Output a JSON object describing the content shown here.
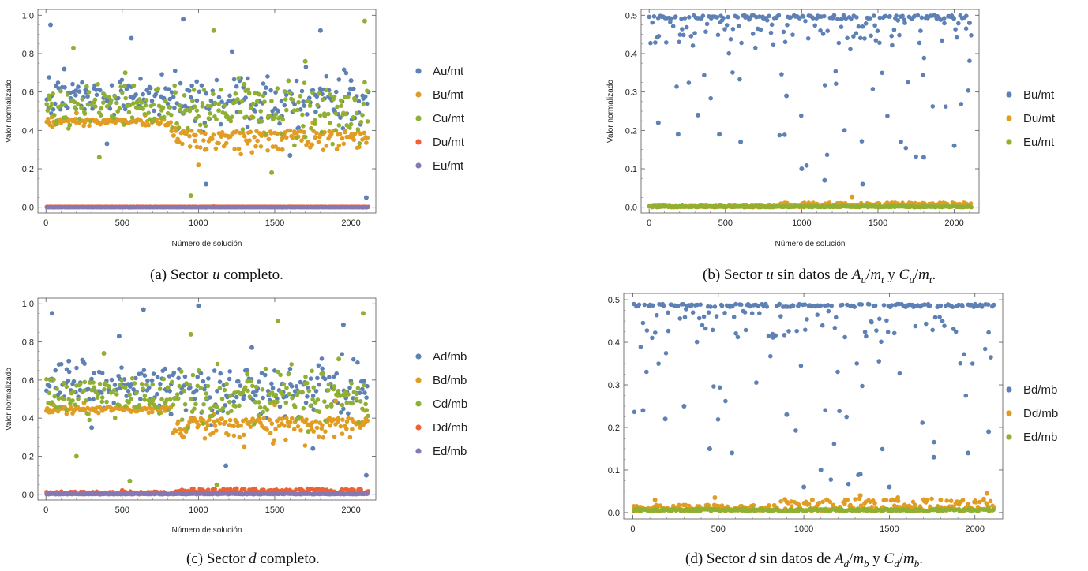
{
  "colors": {
    "blue": "#5e81b5",
    "orange": "#e19c24",
    "green": "#8fb032",
    "red": "#eb6235",
    "purple": "#8778b3"
  },
  "captions": [
    {
      "pre": "(a) Sector ",
      "it1": "u",
      "post": " completo.",
      "mid": "",
      "it2": "",
      "sub2": "",
      "it3": "",
      "end": "",
      "it4": "",
      "sub4": "",
      "it5": "",
      "end2": ""
    },
    {
      "pre": "(b) Sector ",
      "it1": "u",
      "post": " sin datos de ",
      "it2": "A",
      "sub2": "u",
      "it3": "m",
      "sub3": "t",
      "mid": " y ",
      "it4": "C",
      "sub4": "u",
      "it5": "m",
      "sub5": "t",
      "end2": "."
    },
    {
      "pre": "(c) Sector ",
      "it1": "d",
      "post": " completo.",
      "mid": "",
      "it2": "",
      "sub2": "",
      "it3": "",
      "end": "",
      "it4": "",
      "sub4": "",
      "it5": "",
      "end2": ""
    },
    {
      "pre": "(d) Sector ",
      "it1": "d",
      "post": " sin datos de ",
      "it2": "A",
      "sub2": "d",
      "it3": "m",
      "sub3": "b",
      "mid": " y ",
      "it4": "C",
      "sub4": "d",
      "it5": "m",
      "sub5": "b",
      "end2": "."
    }
  ],
  "chart_data": [
    {
      "type": "scatter",
      "xlabel": "Número de solución",
      "ylabel": "Valor normalizado",
      "xlim": [
        0,
        2110
      ],
      "ylim": [
        0,
        1.0
      ],
      "xticks": [
        0,
        500,
        1000,
        1500,
        2000
      ],
      "yticks": [
        0.0,
        0.2,
        0.4,
        0.6,
        0.8,
        1.0
      ],
      "ytick_labels": [
        "0.0",
        "0.2",
        "0.4",
        "0.6",
        "0.8",
        "1.0"
      ],
      "legend_position": "right",
      "n_points": 2110,
      "series": [
        {
          "name": "Au/mt",
          "color": "blue",
          "points": [
            [
              30,
              0.95
            ],
            [
              120,
              0.72
            ],
            [
              260,
              0.61
            ],
            [
              400,
              0.33
            ],
            [
              560,
              0.88
            ],
            [
              700,
              0.45
            ],
            [
              900,
              0.98
            ],
            [
              1050,
              0.12
            ],
            [
              1220,
              0.81
            ],
            [
              1400,
              0.55
            ],
            [
              1600,
              0.27
            ],
            [
              1800,
              0.92
            ],
            [
              2000,
              0.66
            ],
            [
              2100,
              0.05
            ]
          ]
        },
        {
          "name": "Bu/mt",
          "color": "orange",
          "points": [
            [
              40,
              0.47
            ],
            [
              200,
              0.49
            ],
            [
              420,
              0.45
            ],
            [
              650,
              0.48
            ],
            [
              850,
              0.41
            ],
            [
              1000,
              0.22
            ],
            [
              1150,
              0.38
            ],
            [
              1350,
              0.47
            ],
            [
              1550,
              0.3
            ],
            [
              1750,
              0.44
            ],
            [
              1950,
              0.49
            ],
            [
              2100,
              0.36
            ]
          ]
        },
        {
          "name": "Cu/mt",
          "color": "green",
          "points": [
            [
              20,
              0.58
            ],
            [
              180,
              0.83
            ],
            [
              350,
              0.26
            ],
            [
              520,
              0.7
            ],
            [
              760,
              0.52
            ],
            [
              950,
              0.06
            ],
            [
              1100,
              0.92
            ],
            [
              1300,
              0.64
            ],
            [
              1480,
              0.18
            ],
            [
              1700,
              0.76
            ],
            [
              1900,
              0.4
            ],
            [
              2090,
              0.97
            ]
          ]
        },
        {
          "name": "Du/mt",
          "color": "red",
          "points": [
            [
              100,
              0.001
            ],
            [
              600,
              0.002
            ],
            [
              1100,
              0.003
            ],
            [
              1600,
              0.002
            ],
            [
              2050,
              0.001
            ]
          ]
        },
        {
          "name": "Eu/mt",
          "color": "purple",
          "points": [
            [
              50,
              0.0
            ],
            [
              550,
              0.0
            ],
            [
              1050,
              0.0
            ],
            [
              1550,
              0.0
            ],
            [
              2080,
              0.0
            ]
          ]
        }
      ]
    },
    {
      "type": "scatter",
      "xlabel": "Número de solución",
      "ylabel": "Valor normalizado",
      "xlim": [
        0,
        2110
      ],
      "ylim": [
        0,
        0.5
      ],
      "xticks": [
        0,
        500,
        1000,
        1500,
        2000
      ],
      "yticks": [
        0.0,
        0.1,
        0.2,
        0.3,
        0.4,
        0.5
      ],
      "ytick_labels": [
        "0.0",
        "0.1",
        "0.2",
        "0.3",
        "0.4",
        "0.5"
      ],
      "legend_position": "right",
      "n_points": 2110,
      "series": [
        {
          "name": "Bu/mt",
          "color": "blue",
          "points": [
            [
              60,
              0.22
            ],
            [
              190,
              0.19
            ],
            [
              320,
              0.24
            ],
            [
              460,
              0.19
            ],
            [
              600,
              0.17
            ],
            [
              900,
              0.29
            ],
            [
              1000,
              0.1
            ],
            [
              1150,
              0.07
            ],
            [
              1280,
              0.2
            ],
            [
              1400,
              0.06
            ],
            [
              1650,
              0.17
            ],
            [
              1800,
              0.13
            ],
            [
              2000,
              0.16
            ],
            [
              2100,
              0.48
            ]
          ]
        },
        {
          "name": "Du/mt",
          "color": "orange",
          "points": [
            [
              100,
              0.003
            ],
            [
              700,
              0.004
            ],
            [
              1100,
              0.008
            ],
            [
              1330,
              0.027
            ],
            [
              1700,
              0.006
            ],
            [
              2050,
              0.005
            ]
          ]
        },
        {
          "name": "Eu/mt",
          "color": "green",
          "points": [
            [
              50,
              0.001
            ],
            [
              600,
              0.002
            ],
            [
              1200,
              0.002
            ],
            [
              1800,
              0.001
            ]
          ]
        }
      ]
    },
    {
      "type": "scatter",
      "xlabel": "Número de solución",
      "ylabel": "Valor normalizado",
      "xlim": [
        0,
        2110
      ],
      "ylim": [
        0,
        1.0
      ],
      "xticks": [
        0,
        500,
        1000,
        1500,
        2000
      ],
      "yticks": [
        0.0,
        0.2,
        0.4,
        0.6,
        0.8,
        1.0
      ],
      "ytick_labels": [
        "0.0",
        "0.2",
        "0.4",
        "0.6",
        "0.8",
        "1.0"
      ],
      "legend_position": "right",
      "n_points": 2110,
      "series": [
        {
          "name": "Ad/mb",
          "color": "blue",
          "points": [
            [
              40,
              0.95
            ],
            [
              150,
              0.7
            ],
            [
              300,
              0.35
            ],
            [
              480,
              0.83
            ],
            [
              640,
              0.97
            ],
            [
              820,
              0.42
            ],
            [
              1000,
              0.99
            ],
            [
              1180,
              0.15
            ],
            [
              1350,
              0.77
            ],
            [
              1550,
              0.58
            ],
            [
              1750,
              0.24
            ],
            [
              1950,
              0.89
            ],
            [
              2100,
              0.1
            ]
          ]
        },
        {
          "name": "Bd/mb",
          "color": "orange",
          "points": [
            [
              50,
              0.47
            ],
            [
              250,
              0.48
            ],
            [
              480,
              0.45
            ],
            [
              700,
              0.49
            ],
            [
              900,
              0.3
            ],
            [
              1100,
              0.42
            ],
            [
              1300,
              0.25
            ],
            [
              1500,
              0.47
            ],
            [
              1700,
              0.38
            ],
            [
              1900,
              0.49
            ],
            [
              2090,
              0.44
            ]
          ]
        },
        {
          "name": "Cd/mb",
          "color": "green",
          "points": [
            [
              30,
              0.6
            ],
            [
              200,
              0.2
            ],
            [
              380,
              0.74
            ],
            [
              550,
              0.07
            ],
            [
              800,
              0.56
            ],
            [
              950,
              0.84
            ],
            [
              1120,
              0.05
            ],
            [
              1320,
              0.63
            ],
            [
              1520,
              0.91
            ],
            [
              1720,
              0.33
            ],
            [
              1920,
              0.71
            ],
            [
              2080,
              0.95
            ]
          ]
        },
        {
          "name": "Dd/mb",
          "color": "red",
          "points": [
            [
              100,
              0.01
            ],
            [
              500,
              0.02
            ],
            [
              900,
              0.015
            ],
            [
              1250,
              0.03
            ],
            [
              1600,
              0.02
            ],
            [
              2050,
              0.025
            ]
          ]
        },
        {
          "name": "Ed/mb",
          "color": "purple",
          "points": [
            [
              60,
              0.002
            ],
            [
              560,
              0.003
            ],
            [
              1060,
              0.002
            ],
            [
              1560,
              0.003
            ],
            [
              2070,
              0.002
            ]
          ]
        }
      ]
    },
    {
      "type": "scatter",
      "xlabel": "",
      "ylabel": "",
      "xlim": [
        0,
        2110
      ],
      "ylim": [
        0,
        0.5
      ],
      "xticks": [
        0,
        500,
        1000,
        1500,
        2000
      ],
      "yticks": [
        0.0,
        0.1,
        0.2,
        0.3,
        0.4,
        0.5
      ],
      "ytick_labels": [
        "0.0",
        "0.1",
        "0.2",
        "0.3",
        "0.4",
        "0.5"
      ],
      "legend_position": "right",
      "n_points": 2110,
      "series": [
        {
          "name": "Bd/mb",
          "color": "blue",
          "points": [
            [
              60,
              0.24
            ],
            [
              190,
              0.22
            ],
            [
              300,
              0.25
            ],
            [
              450,
              0.15
            ],
            [
              580,
              0.14
            ],
            [
              900,
              0.23
            ],
            [
              1000,
              0.06
            ],
            [
              1100,
              0.1
            ],
            [
              1330,
              0.09
            ],
            [
              1500,
              0.06
            ],
            [
              1760,
              0.13
            ],
            [
              1960,
              0.14
            ],
            [
              2080,
              0.19
            ]
          ]
        },
        {
          "name": "Dd/mb",
          "color": "orange",
          "points": [
            [
              130,
              0.03
            ],
            [
              480,
              0.035
            ],
            [
              900,
              0.025
            ],
            [
              1050,
              0.03
            ],
            [
              1330,
              0.04
            ],
            [
              1550,
              0.035
            ],
            [
              1800,
              0.03
            ],
            [
              2070,
              0.045
            ]
          ]
        },
        {
          "name": "Ed/mb",
          "color": "green",
          "points": [
            [
              50,
              0.005
            ],
            [
              600,
              0.006
            ],
            [
              1200,
              0.008
            ],
            [
              1800,
              0.006
            ]
          ]
        }
      ]
    }
  ]
}
